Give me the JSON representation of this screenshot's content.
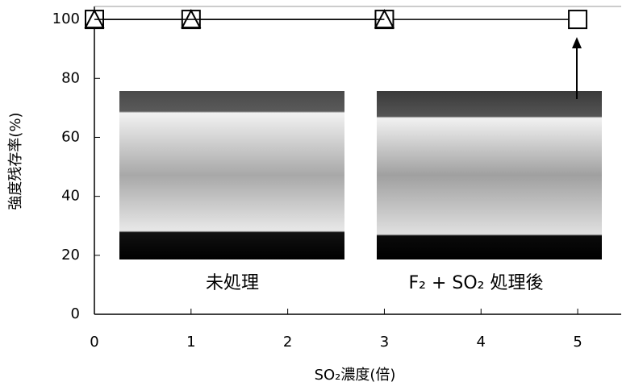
{
  "chart_data": {
    "type": "line",
    "xlabel": "SO₂濃度(倍)",
    "ylabel": "強度残存率(%)",
    "xlim": [
      0,
      5.45
    ],
    "ylim": [
      0,
      104.4
    ],
    "xticks": [
      0,
      1,
      2,
      3,
      4,
      5
    ],
    "yticks": [
      0,
      20,
      40,
      60,
      80,
      100
    ],
    "series": [
      {
        "marker": "square",
        "color": "#000000",
        "x": [
          0,
          1,
          3,
          5
        ],
        "values": [
          100,
          100,
          100,
          100
        ]
      },
      {
        "marker": "triangle",
        "color": "#000000",
        "x": [
          0,
          1,
          3
        ],
        "values": [
          100,
          100,
          100
        ]
      }
    ],
    "annotations": [
      "未処理",
      "F₂ + SO₂ 処理後"
    ]
  }
}
